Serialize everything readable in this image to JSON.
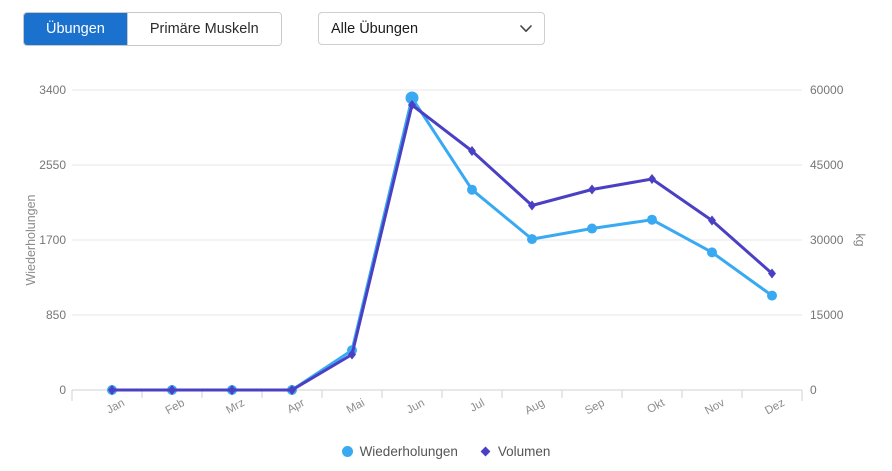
{
  "toolbar": {
    "tabs": [
      {
        "label": "Übungen",
        "active": true
      },
      {
        "label": "Primäre Muskeln",
        "active": false
      }
    ],
    "filter_dropdown": {
      "value": "Alle Übungen"
    }
  },
  "colors": {
    "active_tab_blue": "#1b71ce",
    "series_blue": "#39aaf2",
    "series_purple": "#4b40c3",
    "gridline": "#e7e7e7",
    "axis_line": "#d9d9d9"
  },
  "chart_data": {
    "type": "line",
    "categories": [
      "Jan",
      "Feb",
      "Mrz",
      "Apr",
      "Mai",
      "Jun",
      "Jul",
      "Aug",
      "Sep",
      "Okt",
      "Nov",
      "Dez"
    ],
    "series": [
      {
        "name": "Wiederholungen",
        "axis": "left",
        "color": "#39aaf2",
        "marker": "circle",
        "values": [
          0,
          0,
          0,
          0,
          450,
          3310,
          2270,
          1710,
          1830,
          1930,
          1560,
          1070
        ]
      },
      {
        "name": "Volumen",
        "axis": "right",
        "color": "#4b40c3",
        "marker": "diamond",
        "values": [
          0,
          0,
          0,
          0,
          7100,
          57000,
          47800,
          36900,
          40100,
          42200,
          33900,
          23300
        ]
      }
    ],
    "left_axis": {
      "label": "Wiederholungen",
      "min": 0,
      "max": 3400,
      "ticks": [
        0,
        850,
        1700,
        2550,
        3400
      ]
    },
    "right_axis": {
      "label": "kg",
      "min": 0,
      "max": 60000,
      "ticks": [
        0,
        15000,
        30000,
        45000,
        60000
      ]
    },
    "grid": true,
    "legend_position": "bottom"
  }
}
